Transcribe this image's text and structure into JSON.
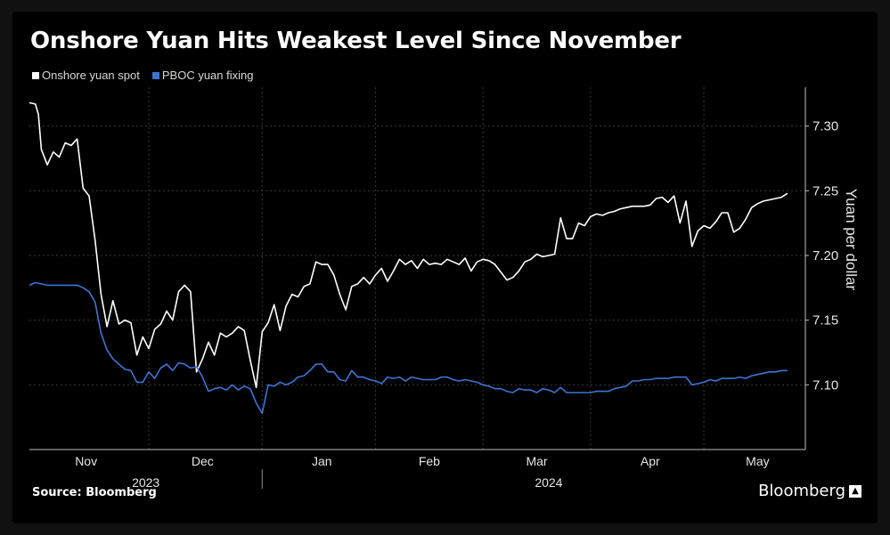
{
  "title": "Onshore Yuan Hits Weakest Level Since November",
  "source": "Source: Bloomberg",
  "brand": "Bloomberg",
  "colors": {
    "spot": "#ffffff",
    "fixing": "#3d74d4",
    "grid": "#3a3a3a",
    "axis": "#bfbfbf"
  },
  "chart_data": {
    "type": "line",
    "title": "Onshore Yuan Hits Weakest Level Since November",
    "ylabel": "Yuan per dollar",
    "ylim": [
      7.05,
      7.33
    ],
    "yticks": [
      7.1,
      7.15,
      7.2,
      7.25,
      7.3
    ],
    "ytick_labels": [
      "7.10",
      "7.15",
      "7.20",
      "7.25",
      "7.30"
    ],
    "x_range": [
      0,
      130
    ],
    "month_ticks": [
      {
        "label": "Nov",
        "x": 9.5
      },
      {
        "label": "Dec",
        "x": 29
      },
      {
        "label": "Jan",
        "x": 49
      },
      {
        "label": "Feb",
        "x": 67
      },
      {
        "label": "Mar",
        "x": 85
      },
      {
        "label": "Apr",
        "x": 104
      },
      {
        "label": "May",
        "x": 122
      }
    ],
    "month_gridlines": [
      20,
      39,
      58,
      76,
      94,
      113
    ],
    "year_labels": [
      {
        "label": "2023",
        "x": 19.5
      },
      {
        "label": "2024",
        "x": 87
      }
    ],
    "year_divider_x": 39,
    "legend": [
      "Onshore yuan spot",
      "PBOC yuan fixing"
    ],
    "series": [
      {
        "name": "Onshore yuan spot",
        "points": [
          [
            0,
            7.318
          ],
          [
            1,
            7.317
          ],
          [
            1.5,
            7.309
          ],
          [
            2,
            7.282
          ],
          [
            3,
            7.27
          ],
          [
            4,
            7.28
          ],
          [
            5,
            7.276
          ],
          [
            6,
            7.287
          ],
          [
            7,
            7.285
          ],
          [
            8,
            7.29
          ],
          [
            9,
            7.252
          ],
          [
            10,
            7.246
          ],
          [
            11,
            7.212
          ],
          [
            12,
            7.17
          ],
          [
            13,
            7.145
          ],
          [
            14,
            7.165
          ],
          [
            15,
            7.147
          ],
          [
            16,
            7.15
          ],
          [
            17,
            7.148
          ],
          [
            18,
            7.123
          ],
          [
            19,
            7.137
          ],
          [
            20,
            7.128
          ],
          [
            21,
            7.143
          ],
          [
            22,
            7.147
          ],
          [
            23,
            7.157
          ],
          [
            24,
            7.15
          ],
          [
            25,
            7.172
          ],
          [
            26,
            7.177
          ],
          [
            27,
            7.172
          ],
          [
            28,
            7.11
          ],
          [
            29,
            7.12
          ],
          [
            30,
            7.133
          ],
          [
            31,
            7.123
          ],
          [
            32,
            7.14
          ],
          [
            33,
            7.137
          ],
          [
            34,
            7.14
          ],
          [
            35,
            7.145
          ],
          [
            36,
            7.142
          ],
          [
            37,
            7.119
          ],
          [
            38,
            7.098
          ],
          [
            39,
            7.141
          ],
          [
            40,
            7.148
          ],
          [
            41,
            7.162
          ],
          [
            42,
            7.142
          ],
          [
            43,
            7.161
          ],
          [
            44,
            7.17
          ],
          [
            45,
            7.168
          ],
          [
            46,
            7.176
          ],
          [
            47,
            7.178
          ],
          [
            48,
            7.195
          ],
          [
            49,
            7.193
          ],
          [
            50,
            7.193
          ],
          [
            51,
            7.185
          ],
          [
            52,
            7.17
          ],
          [
            53,
            7.158
          ],
          [
            54,
            7.176
          ],
          [
            55,
            7.178
          ],
          [
            56,
            7.183
          ],
          [
            57,
            7.178
          ],
          [
            58,
            7.185
          ],
          [
            59,
            7.19
          ],
          [
            60,
            7.18
          ],
          [
            61,
            7.188
          ],
          [
            62,
            7.197
          ],
          [
            63,
            7.193
          ],
          [
            64,
            7.196
          ],
          [
            65,
            7.19
          ],
          [
            66,
            7.197
          ],
          [
            67,
            7.193
          ],
          [
            68,
            7.194
          ],
          [
            69,
            7.193
          ],
          [
            70,
            7.197
          ],
          [
            71,
            7.195
          ],
          [
            72,
            7.193
          ],
          [
            73,
            7.198
          ],
          [
            74,
            7.188
          ],
          [
            75,
            7.195
          ],
          [
            76,
            7.197
          ],
          [
            77,
            7.196
          ],
          [
            78,
            7.193
          ],
          [
            79,
            7.187
          ],
          [
            80,
            7.181
          ],
          [
            81,
            7.183
          ],
          [
            82,
            7.188
          ],
          [
            83,
            7.195
          ],
          [
            84,
            7.197
          ],
          [
            85,
            7.201
          ],
          [
            86,
            7.199
          ],
          [
            87,
            7.2
          ],
          [
            88,
            7.201
          ],
          [
            89,
            7.229
          ],
          [
            90,
            7.213
          ],
          [
            91,
            7.213
          ],
          [
            92,
            7.225
          ],
          [
            93,
            7.223
          ],
          [
            94,
            7.23
          ],
          [
            95,
            7.232
          ],
          [
            96,
            7.231
          ],
          [
            97,
            7.233
          ],
          [
            98,
            7.234
          ],
          [
            99,
            7.236
          ],
          [
            100,
            7.237
          ],
          [
            101,
            7.238
          ],
          [
            102,
            7.238
          ],
          [
            103,
            7.238
          ],
          [
            104,
            7.239
          ],
          [
            105,
            7.244
          ],
          [
            106,
            7.245
          ],
          [
            107,
            7.241
          ],
          [
            108,
            7.246
          ],
          [
            109,
            7.225
          ],
          [
            110,
            7.242
          ],
          [
            111,
            7.207
          ],
          [
            112,
            7.219
          ],
          [
            113,
            7.223
          ],
          [
            114,
            7.221
          ],
          [
            115,
            7.226
          ],
          [
            116,
            7.233
          ],
          [
            117,
            7.233
          ],
          [
            118,
            7.218
          ],
          [
            119,
            7.221
          ],
          [
            120,
            7.228
          ],
          [
            121,
            7.237
          ],
          [
            122,
            7.24
          ],
          [
            123,
            7.242
          ],
          [
            124,
            7.243
          ],
          [
            125,
            7.244
          ],
          [
            126,
            7.245
          ],
          [
            127,
            7.248
          ]
        ]
      },
      {
        "name": "PBOC yuan fixing",
        "points": [
          [
            0,
            7.177
          ],
          [
            1,
            7.179
          ],
          [
            2,
            7.178
          ],
          [
            3,
            7.177
          ],
          [
            4,
            7.177
          ],
          [
            5,
            7.177
          ],
          [
            6,
            7.177
          ],
          [
            7,
            7.177
          ],
          [
            8,
            7.177
          ],
          [
            9,
            7.175
          ],
          [
            10,
            7.172
          ],
          [
            11,
            7.164
          ],
          [
            12,
            7.14
          ],
          [
            13,
            7.127
          ],
          [
            14,
            7.12
          ],
          [
            15,
            7.116
          ],
          [
            16,
            7.112
          ],
          [
            17,
            7.111
          ],
          [
            18,
            7.102
          ],
          [
            19,
            7.102
          ],
          [
            20,
            7.11
          ],
          [
            21,
            7.105
          ],
          [
            22,
            7.113
          ],
          [
            23,
            7.116
          ],
          [
            24,
            7.111
          ],
          [
            25,
            7.117
          ],
          [
            26,
            7.116
          ],
          [
            27,
            7.113
          ],
          [
            28,
            7.114
          ],
          [
            29,
            7.106
          ],
          [
            30,
            7.095
          ],
          [
            31,
            7.097
          ],
          [
            32,
            7.098
          ],
          [
            33,
            7.096
          ],
          [
            34,
            7.1
          ],
          [
            35,
            7.096
          ],
          [
            36,
            7.099
          ],
          [
            37,
            7.097
          ],
          [
            38,
            7.086
          ],
          [
            39,
            7.078
          ],
          [
            40,
            7.1
          ],
          [
            41,
            7.099
          ],
          [
            42,
            7.102
          ],
          [
            43,
            7.1
          ],
          [
            44,
            7.102
          ],
          [
            45,
            7.106
          ],
          [
            46,
            7.107
          ],
          [
            47,
            7.111
          ],
          [
            48,
            7.116
          ],
          [
            49,
            7.116
          ],
          [
            50,
            7.11
          ],
          [
            51,
            7.11
          ],
          [
            52,
            7.104
          ],
          [
            53,
            7.103
          ],
          [
            54,
            7.111
          ],
          [
            55,
            7.106
          ],
          [
            56,
            7.106
          ],
          [
            57,
            7.104
          ],
          [
            58,
            7.103
          ],
          [
            59,
            7.101
          ],
          [
            60,
            7.106
          ],
          [
            61,
            7.105
          ],
          [
            62,
            7.106
          ],
          [
            63,
            7.103
          ],
          [
            64,
            7.106
          ],
          [
            65,
            7.105
          ],
          [
            66,
            7.104
          ],
          [
            67,
            7.104
          ],
          [
            68,
            7.104
          ],
          [
            69,
            7.106
          ],
          [
            70,
            7.106
          ],
          [
            71,
            7.104
          ],
          [
            72,
            7.103
          ],
          [
            73,
            7.104
          ],
          [
            74,
            7.103
          ],
          [
            75,
            7.102
          ],
          [
            76,
            7.1
          ],
          [
            77,
            7.099
          ],
          [
            78,
            7.097
          ],
          [
            79,
            7.097
          ],
          [
            80,
            7.095
          ],
          [
            81,
            7.094
          ],
          [
            82,
            7.097
          ],
          [
            83,
            7.096
          ],
          [
            84,
            7.096
          ],
          [
            85,
            7.094
          ],
          [
            86,
            7.097
          ],
          [
            87,
            7.096
          ],
          [
            88,
            7.094
          ],
          [
            89,
            7.098
          ],
          [
            90,
            7.094
          ],
          [
            91,
            7.094
          ],
          [
            92,
            7.094
          ],
          [
            93,
            7.094
          ],
          [
            94,
            7.094
          ],
          [
            95,
            7.095
          ],
          [
            96,
            7.095
          ],
          [
            97,
            7.095
          ],
          [
            98,
            7.097
          ],
          [
            99,
            7.098
          ],
          [
            100,
            7.099
          ],
          [
            101,
            7.103
          ],
          [
            102,
            7.103
          ],
          [
            103,
            7.104
          ],
          [
            104,
            7.104
          ],
          [
            105,
            7.105
          ],
          [
            106,
            7.105
          ],
          [
            107,
            7.105
          ],
          [
            108,
            7.106
          ],
          [
            109,
            7.106
          ],
          [
            110,
            7.106
          ],
          [
            111,
            7.1
          ],
          [
            112,
            7.101
          ],
          [
            113,
            7.102
          ],
          [
            114,
            7.104
          ],
          [
            115,
            7.103
          ],
          [
            116,
            7.105
          ],
          [
            117,
            7.105
          ],
          [
            118,
            7.105
          ],
          [
            119,
            7.106
          ],
          [
            120,
            7.105
          ],
          [
            121,
            7.107
          ],
          [
            122,
            7.108
          ],
          [
            123,
            7.109
          ],
          [
            124,
            7.11
          ],
          [
            125,
            7.11
          ],
          [
            126,
            7.111
          ],
          [
            127,
            7.111
          ]
        ]
      }
    ]
  }
}
